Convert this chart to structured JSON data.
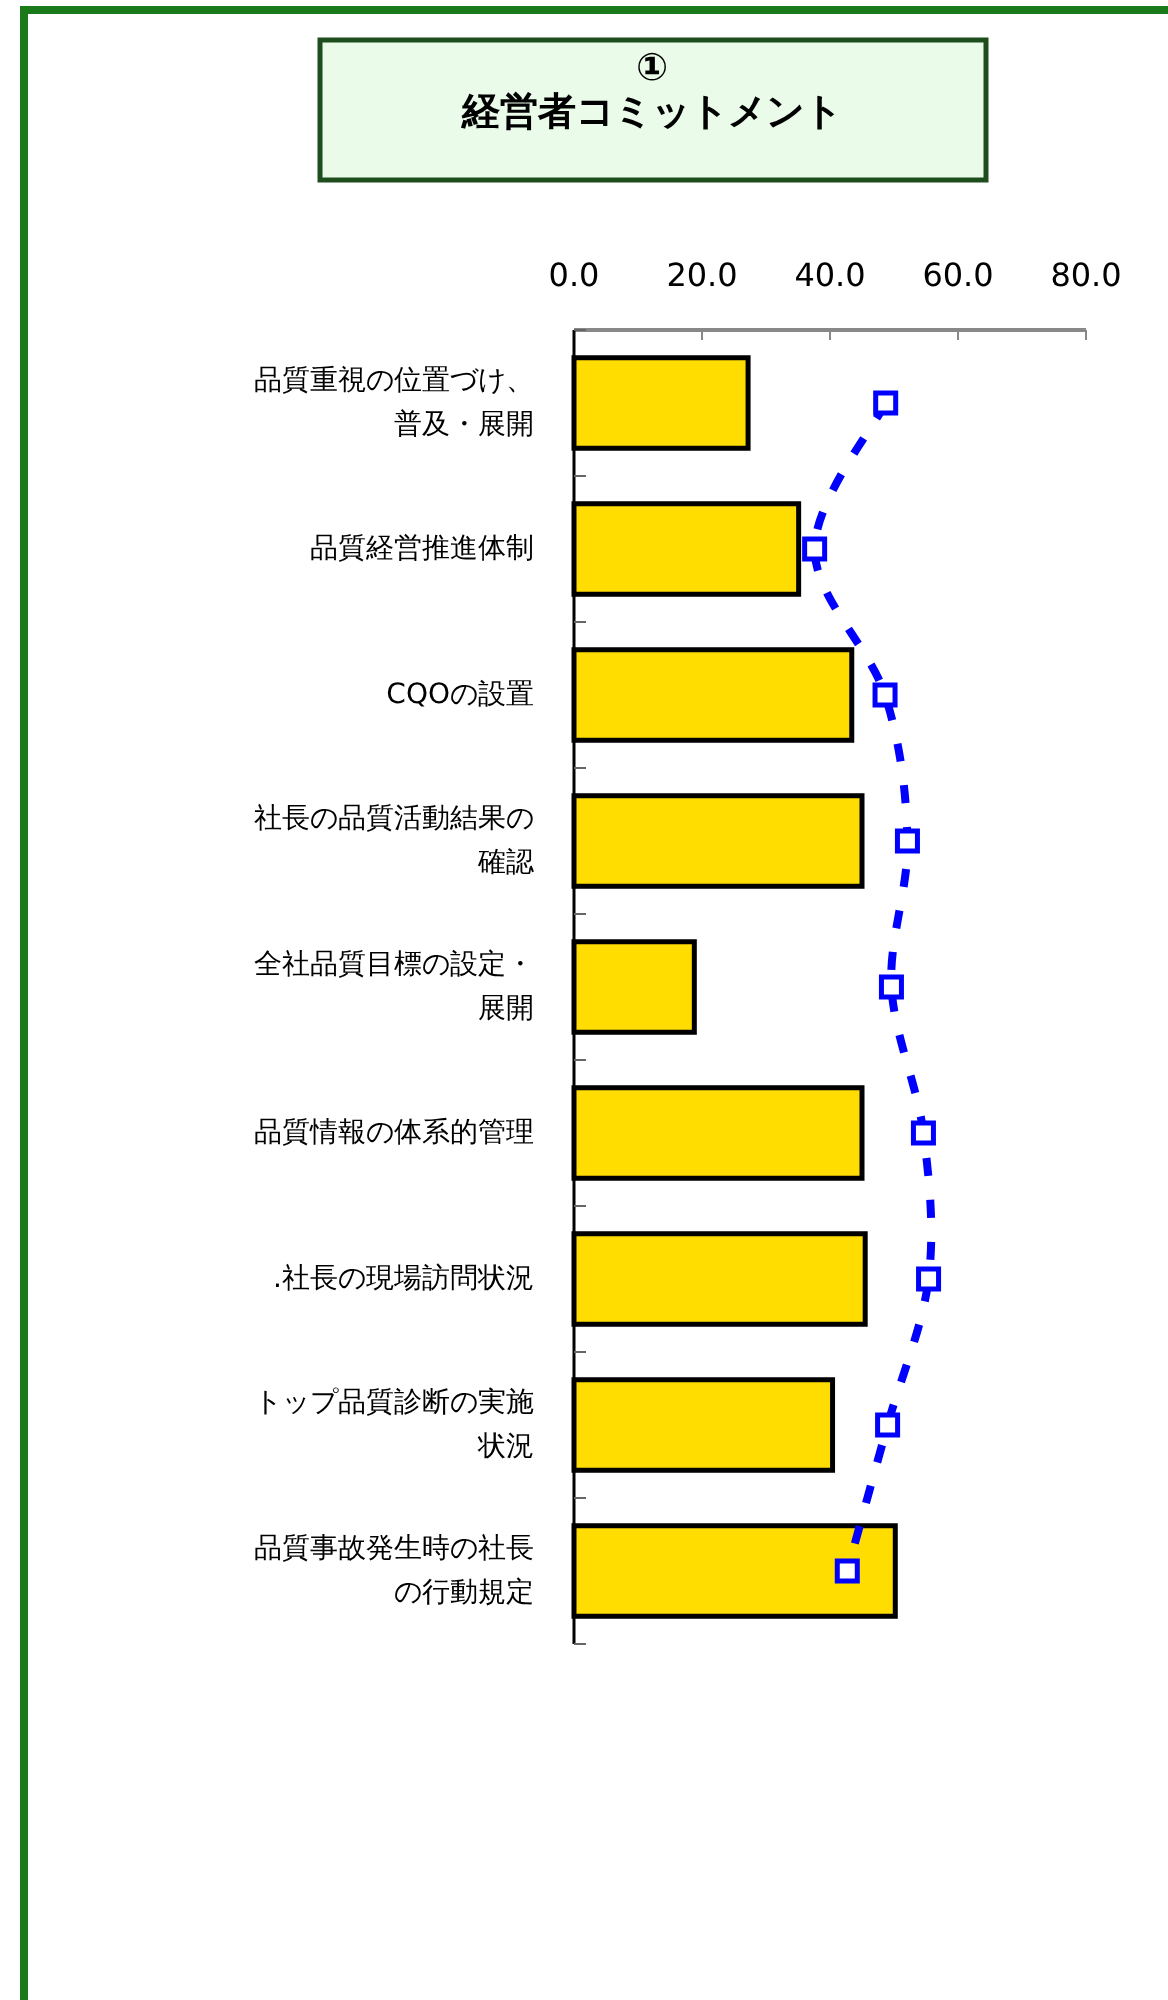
{
  "chart_data": {
    "type": "bar",
    "orientation": "horizontal",
    "title": "①\n経営者コミットメント",
    "categories": [
      "品質重視の位置づけ、普及・展開",
      "品質経営推進体制",
      "CQOの設置",
      "社長の品質活動結果の確認",
      "全社品質目標の設定・展開",
      "品質情報の体系的管理",
      ".社長の現場訪問状況",
      "トップ品質診断の実施状況",
      "品質事故発生時の社長の行動規定"
    ],
    "series": [
      {
        "color": "#ffdd00",
        "values": [
          27.2,
          35.1,
          43.4,
          45.0,
          18.8,
          45.0,
          45.5,
          40.4,
          50.2
        ]
      },
      {
        "type": "line",
        "color": "#0000ff",
        "marker": "square",
        "line_style": "dashed",
        "values": [
          48.7,
          37.6,
          48.6,
          52.1,
          49.6,
          54.6,
          55.4,
          49.0,
          42.7
        ]
      }
    ],
    "xlim": [
      0,
      80
    ],
    "xticks": [
      {
        "value": 0,
        "label": "0.0"
      },
      {
        "value": 20,
        "label": "20.0"
      },
      {
        "value": 40,
        "label": "40.0"
      },
      {
        "value": 60,
        "label": "60.0"
      },
      {
        "value": 80,
        "label": "80.0"
      }
    ],
    "grid": false,
    "legend": false
  }
}
